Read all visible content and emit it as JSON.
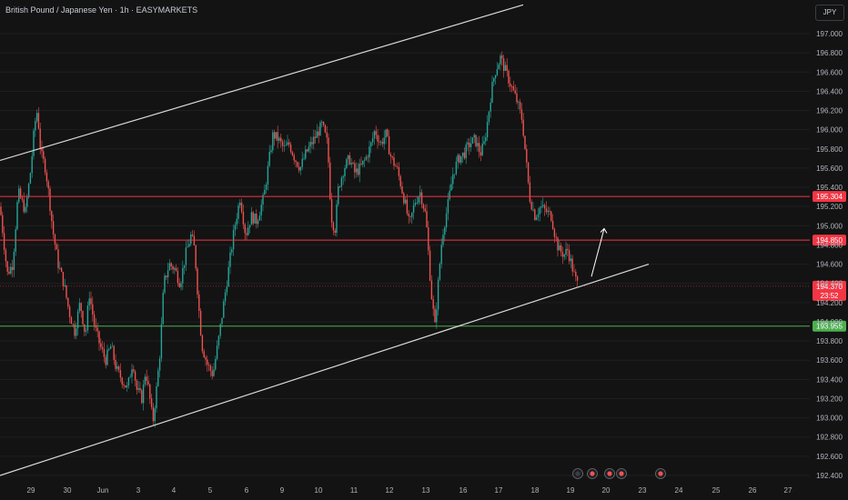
{
  "header": {
    "title": "British Pound / Japanese Yen · 1h · EASYMARKETS",
    "currency_button": "JPY"
  },
  "colors": {
    "background": "#131313",
    "up": "#26a69a",
    "down": "#ef5350",
    "resistance": "#f23645",
    "support": "#4caf50",
    "channel": "#d9d9d9",
    "current_price": "#f23645"
  },
  "chart_data": {
    "type": "candlestick",
    "ylim": [
      192.3,
      197.2
    ],
    "yticks": [
      "197.000",
      "196.800",
      "196.600",
      "196.400",
      "196.200",
      "196.000",
      "195.800",
      "195.600",
      "195.400",
      "195.200",
      "195.000",
      "194.800",
      "194.600",
      "194.400",
      "194.200",
      "194.000",
      "193.800",
      "193.600",
      "193.400",
      "193.200",
      "193.000",
      "192.800",
      "192.600",
      "192.400"
    ],
    "ytick_values": [
      197.0,
      196.8,
      196.6,
      196.4,
      196.2,
      196.0,
      195.8,
      195.6,
      195.4,
      195.2,
      195.0,
      194.8,
      194.6,
      194.4,
      194.2,
      194.0,
      193.8,
      193.6,
      193.4,
      193.2,
      193.0,
      192.8,
      192.6,
      192.4
    ],
    "xticks": [
      "29",
      "30",
      "Jun",
      "3",
      "4",
      "5",
      "6",
      "9",
      "10",
      "11",
      "12",
      "13",
      "16",
      "17",
      "18",
      "19",
      "20",
      "23",
      "24",
      "25",
      "26",
      "27"
    ],
    "horizontal_levels": [
      {
        "label": "195.304",
        "value": 195.304,
        "color": "#f23645"
      },
      {
        "label": "194.850",
        "value": 194.85,
        "color": "#f23645"
      },
      {
        "label": "193.955",
        "value": 193.955,
        "color": "#4caf50"
      }
    ],
    "current_price": {
      "label": "194.370",
      "countdown": "23:52",
      "value": 194.37
    },
    "channel_upper": [
      {
        "t": 0,
        "price": 195.68
      },
      {
        "t": 575,
        "price": 197.3
      }
    ],
    "channel_lower": [
      {
        "t": 0,
        "price": 192.4
      },
      {
        "t": 713,
        "price": 194.6
      }
    ],
    "projection_arrow": [
      {
        "t": 650,
        "price": 194.47
      },
      {
        "t": 664,
        "price": 194.97
      }
    ],
    "price_path": [
      [
        0,
        195.2
      ],
      [
        8,
        194.5
      ],
      [
        14,
        194.6
      ],
      [
        20,
        195.35
      ],
      [
        28,
        195.15
      ],
      [
        34,
        195.6
      ],
      [
        38,
        196.05
      ],
      [
        41,
        196.2
      ],
      [
        45,
        195.75
      ],
      [
        50,
        195.6
      ],
      [
        54,
        195.3
      ],
      [
        58,
        194.95
      ],
      [
        64,
        194.6
      ],
      [
        70,
        194.4
      ],
      [
        76,
        194.1
      ],
      [
        82,
        193.9
      ],
      [
        88,
        194.2
      ],
      [
        94,
        193.85
      ],
      [
        98,
        194.3
      ],
      [
        104,
        193.95
      ],
      [
        110,
        193.75
      ],
      [
        116,
        193.6
      ],
      [
        122,
        193.75
      ],
      [
        128,
        193.5
      ],
      [
        134,
        193.4
      ],
      [
        140,
        193.3
      ],
      [
        146,
        193.6
      ],
      [
        150,
        193.3
      ],
      [
        156,
        193.2
      ],
      [
        160,
        193.5
      ],
      [
        164,
        193.25
      ],
      [
        168,
        192.95
      ],
      [
        172,
        193.3
      ],
      [
        176,
        193.7
      ],
      [
        180,
        194.4
      ],
      [
        186,
        194.6
      ],
      [
        192,
        194.55
      ],
      [
        198,
        194.4
      ],
      [
        204,
        194.7
      ],
      [
        210,
        194.9
      ],
      [
        214,
        194.75
      ],
      [
        218,
        194.2
      ],
      [
        222,
        193.75
      ],
      [
        228,
        193.55
      ],
      [
        234,
        193.45
      ],
      [
        240,
        193.8
      ],
      [
        246,
        194.2
      ],
      [
        252,
        194.6
      ],
      [
        258,
        195.0
      ],
      [
        264,
        195.3
      ],
      [
        270,
        194.9
      ],
      [
        276,
        195.1
      ],
      [
        282,
        195.05
      ],
      [
        290,
        195.3
      ],
      [
        296,
        195.7
      ],
      [
        300,
        195.95
      ],
      [
        306,
        195.9
      ],
      [
        312,
        195.8
      ],
      [
        318,
        195.85
      ],
      [
        324,
        195.7
      ],
      [
        330,
        195.6
      ],
      [
        336,
        195.75
      ],
      [
        342,
        195.85
      ],
      [
        348,
        195.95
      ],
      [
        354,
        196.05
      ],
      [
        360,
        195.85
      ],
      [
        364,
        195.1
      ],
      [
        368,
        194.95
      ],
      [
        372,
        195.4
      ],
      [
        378,
        195.6
      ],
      [
        384,
        195.7
      ],
      [
        390,
        195.55
      ],
      [
        396,
        195.6
      ],
      [
        402,
        195.7
      ],
      [
        408,
        195.85
      ],
      [
        412,
        196.0
      ],
      [
        418,
        195.85
      ],
      [
        424,
        195.95
      ],
      [
        430,
        195.7
      ],
      [
        436,
        195.6
      ],
      [
        440,
        195.45
      ],
      [
        446,
        195.2
      ],
      [
        450,
        195.0
      ],
      [
        456,
        195.25
      ],
      [
        462,
        195.35
      ],
      [
        468,
        195.1
      ],
      [
        474,
        194.3
      ],
      [
        478,
        193.95
      ],
      [
        482,
        194.45
      ],
      [
        486,
        194.9
      ],
      [
        492,
        195.2
      ],
      [
        498,
        195.55
      ],
      [
        504,
        195.7
      ],
      [
        510,
        195.75
      ],
      [
        516,
        195.85
      ],
      [
        522,
        195.9
      ],
      [
        528,
        195.75
      ],
      [
        532,
        195.85
      ],
      [
        536,
        196.1
      ],
      [
        540,
        196.4
      ],
      [
        544,
        196.6
      ],
      [
        550,
        196.75
      ],
      [
        556,
        196.6
      ],
      [
        562,
        196.45
      ],
      [
        568,
        196.3
      ],
      [
        574,
        196.1
      ],
      [
        578,
        195.7
      ],
      [
        582,
        195.3
      ],
      [
        588,
        195.1
      ],
      [
        594,
        195.2
      ],
      [
        600,
        195.15
      ],
      [
        606,
        195.1
      ],
      [
        610,
        194.9
      ],
      [
        614,
        194.75
      ],
      [
        620,
        194.7
      ],
      [
        624,
        194.75
      ],
      [
        628,
        194.6
      ],
      [
        632,
        194.45
      ],
      [
        636,
        194.37
      ]
    ]
  }
}
